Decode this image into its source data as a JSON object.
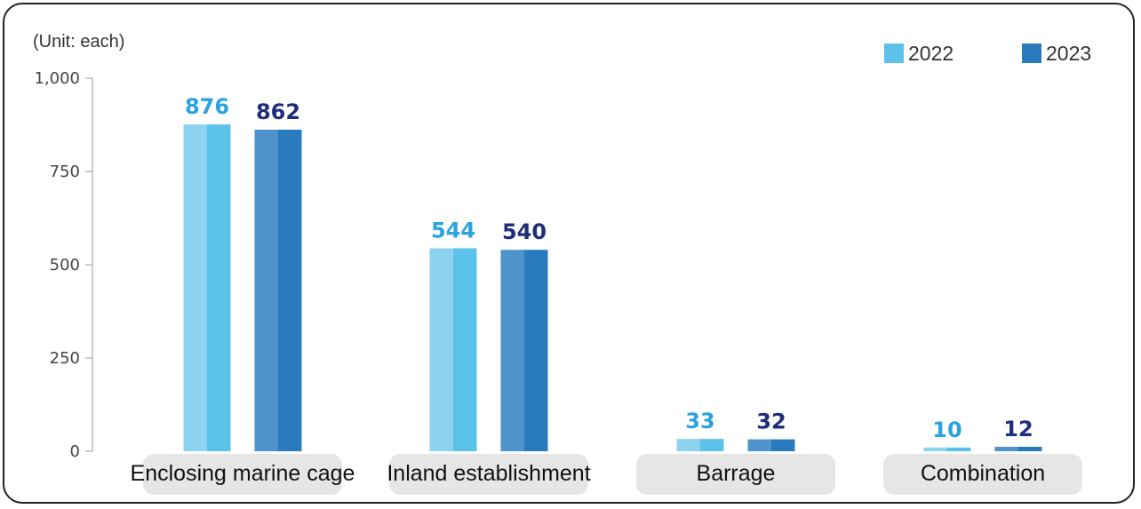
{
  "chart_data": {
    "type": "bar",
    "unit_label": "(Unit: each)",
    "categories": [
      "Enclosing marine cage",
      "Inland establishment",
      "Barrage",
      "Combination"
    ],
    "series": [
      {
        "name": "2022",
        "values": [
          876,
          544,
          33,
          10
        ],
        "colors": [
          "#8dd3f0",
          "#5bc3ea"
        ],
        "label_color": "#2aa3e0"
      },
      {
        "name": "2023",
        "values": [
          862,
          540,
          32,
          12
        ],
        "colors": [
          "#4f93cc",
          "#2a7bbd"
        ],
        "label_color": "#1f2e7a"
      }
    ],
    "ylim": [
      0,
      1000
    ],
    "yticks": [
      0,
      250,
      500,
      750,
      1000
    ],
    "ytick_labels": [
      "0",
      "250",
      "500",
      "750",
      "1,000"
    ],
    "legend_position": "top-right",
    "grid": false
  }
}
